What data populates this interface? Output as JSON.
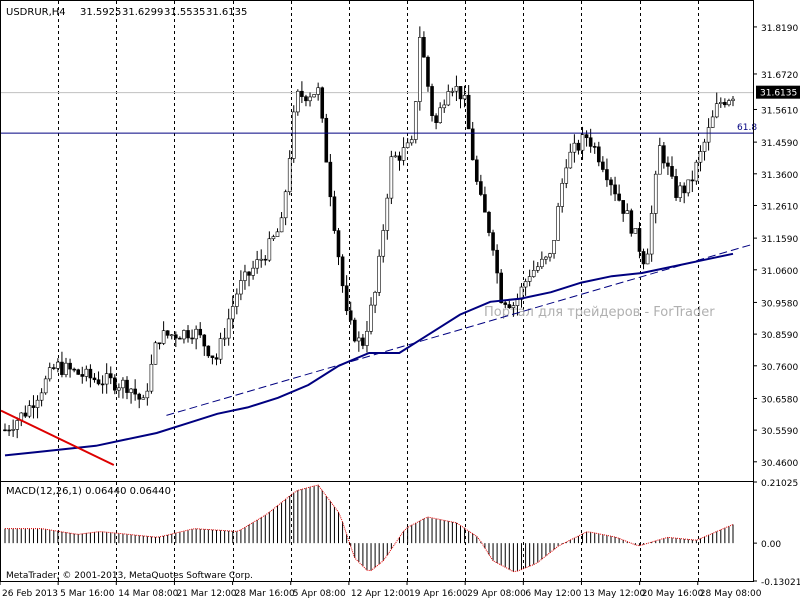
{
  "chart_data": [
    {
      "type": "candlestick",
      "symbol_label": "USDRUR,H4",
      "ohlc_header": [
        "31.5925",
        "31.6299",
        "31.5535",
        "31.6135"
      ],
      "current_price": 31.6135,
      "current_price_label": "31.6135",
      "ylim": [
        30.4,
        31.9
      ],
      "y_ticks": [
        "31.8190",
        "31.6720",
        "31.5610",
        "31.4590",
        "31.3600",
        "31.2610",
        "31.1590",
        "31.0600",
        "30.9580",
        "30.8590",
        "30.7600",
        "30.6580",
        "30.5590",
        "30.4600"
      ],
      "y_tick_values": [
        31.819,
        31.672,
        31.561,
        31.459,
        31.36,
        31.261,
        31.159,
        31.06,
        30.958,
        30.859,
        30.76,
        30.658,
        30.559,
        30.46
      ],
      "x_ticks": [
        "26 Feb 2013",
        "5 Mar 16:00",
        "14 Mar 08:00",
        "21 Mar 12:00",
        "28 Mar 16:00",
        "5 Apr 08:00",
        "12 Apr 12:00",
        "19 Apr 16:00",
        "29 Apr 08:00",
        "6 May 12:00",
        "13 May 12:00",
        "20 May 16:00",
        "28 May 08:00"
      ],
      "fib_level": {
        "label": "61.8",
        "value": 31.487,
        "color": "#000080"
      },
      "moving_average_color": "#000080",
      "moving_average": [
        30.48,
        30.49,
        30.5,
        30.51,
        30.53,
        30.55,
        30.58,
        30.61,
        30.63,
        30.66,
        30.7,
        30.76,
        30.8,
        30.8,
        30.86,
        30.92,
        30.96,
        30.97,
        30.99,
        31.02,
        31.04,
        31.05,
        31.07,
        31.09,
        31.11
      ],
      "trendlines": [
        {
          "style": "dashed",
          "color": "#000080",
          "from": [
            0.22,
            30.605
          ],
          "to": [
            1.0,
            31.14
          ]
        },
        {
          "style": "solid",
          "color": "#dd0000",
          "from": [
            0.0,
            30.62
          ],
          "to": [
            0.15,
            30.45
          ]
        }
      ],
      "watermark": "Портал для трейдеров - ForTrader",
      "candle_color": "#000000",
      "candles_count": 180
    },
    {
      "type": "bar",
      "label": "MACD(12,26,1) 0.06440 0.06440",
      "ylim": [
        -0.13021,
        0.21025
      ],
      "y_ticks": [
        "0.21025",
        "0.00",
        "-0.13021"
      ],
      "y_tick_values": [
        0.21025,
        0.0,
        -0.13021
      ],
      "bar_color": "#000000",
      "signal_color": "#dd0000"
    }
  ],
  "footer_credit": "MetaTrader, © 2001-2013, MetaQuotes Software Corp."
}
